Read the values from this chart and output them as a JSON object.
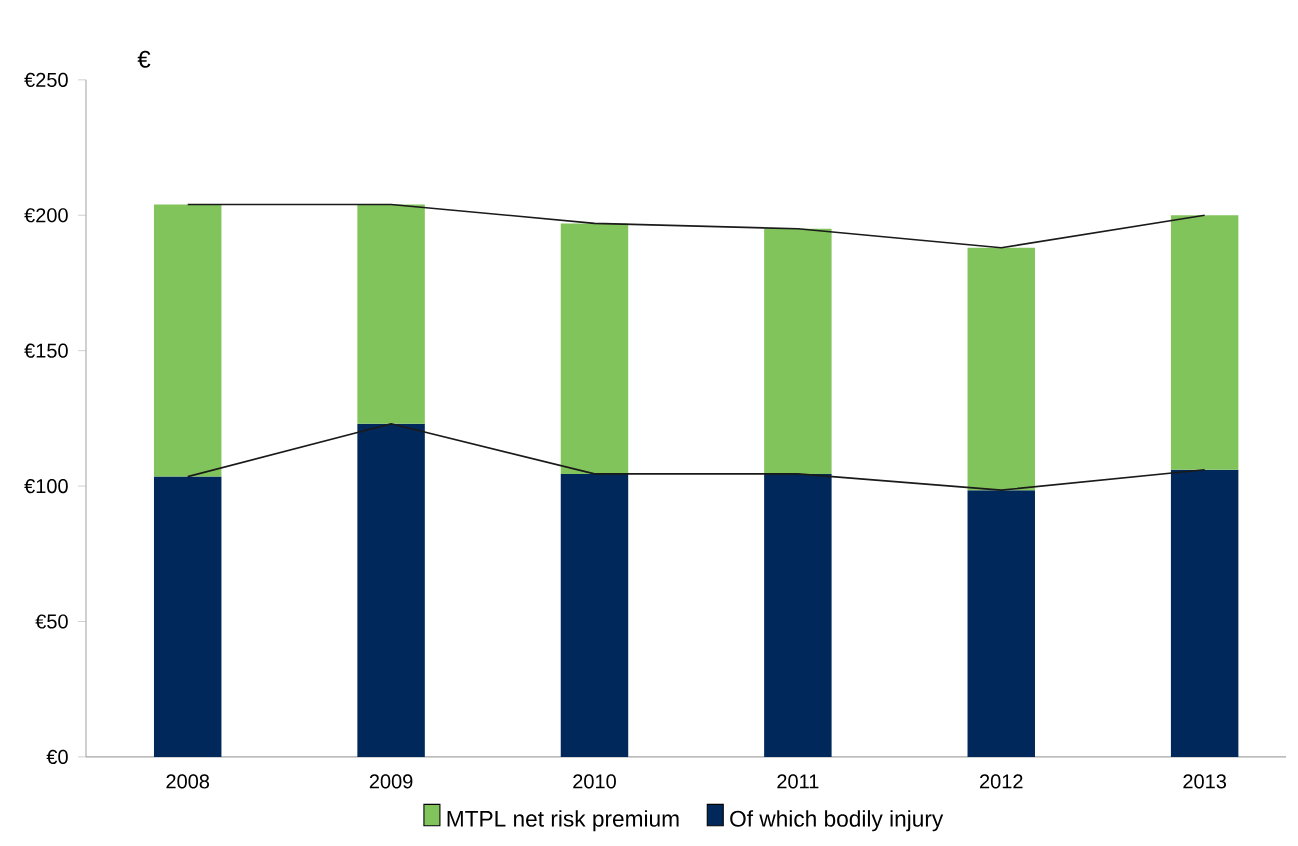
{
  "chart_data": {
    "type": "bar",
    "stacked": true,
    "ylabel": "€",
    "categories": [
      "2008",
      "2009",
      "2010",
      "2011",
      "2012",
      "2013"
    ],
    "series": [
      {
        "name": "Of which bodily injury",
        "color": "#00285a",
        "values": [
          103.5,
          123,
          104.5,
          104.5,
          98.5,
          106
        ]
      },
      {
        "name": "MTPL net risk premium",
        "color": "#82c45c",
        "values": [
          100.5,
          81,
          92.5,
          90.5,
          89.5,
          94
        ]
      },
      {
        "type": "line",
        "color": "#1a1a1a",
        "values": [
          204,
          204,
          197,
          195,
          188,
          200
        ]
      },
      {
        "type": "line",
        "color": "#1a1a1a",
        "values": [
          103.5,
          123,
          104.5,
          104.5,
          98.5,
          106
        ]
      }
    ],
    "ylim": [
      0,
      250
    ],
    "yticks": [
      {
        "value": 0,
        "label": "€0"
      },
      {
        "value": 50,
        "label": "€50"
      },
      {
        "value": 100,
        "label": "€100"
      },
      {
        "value": 150,
        "label": "€150"
      },
      {
        "value": 200,
        "label": "€200"
      },
      {
        "value": 250,
        "label": "€250"
      }
    ],
    "grid": false,
    "legend": "bottom"
  }
}
